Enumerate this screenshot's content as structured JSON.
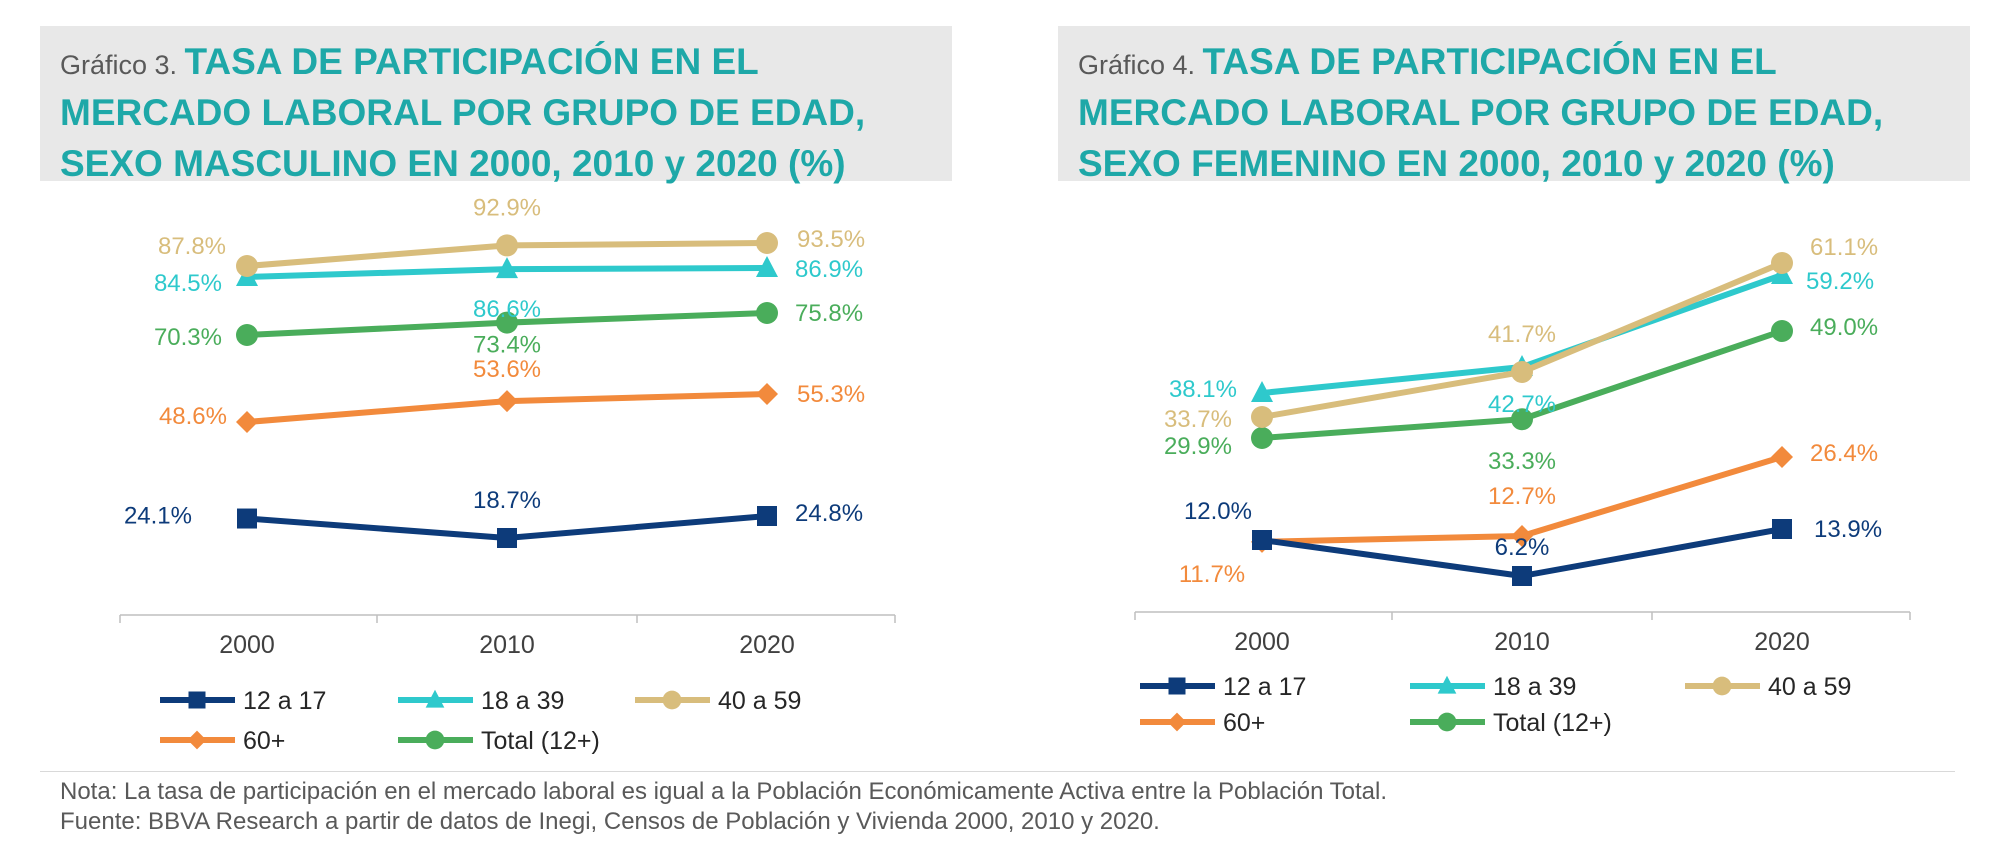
{
  "colors": {
    "title_bg": "#e8e8e8",
    "title_accent": "#1ea8a8",
    "text_gray": "#595959",
    "axis": "#bfbfbf"
  },
  "charts": [
    {
      "title_prefix": "Gráfico 3. ",
      "title_main": "TASA DE PARTICIPACIÓN EN EL MERCADO LABORAL POR GRUPO DE EDAD, SEXO MASCULINO EN 2000, 2010 y 2020 (%)"
    },
    {
      "title_prefix": "Gráfico 4. ",
      "title_main": "TASA DE PARTICIPACIÓN EN EL MERCADO LABORAL POR GRUPO DE EDAD, SEXO FEMENINO EN 2000, 2010 y 2020 (%)"
    }
  ],
  "chart_data": [
    {
      "type": "line",
      "title": "TASA DE PARTICIPACIÓN EN EL MERCADO LABORAL POR GRUPO DE EDAD, SEXO MASCULINO EN 2000, 2010 y 2020 (%)",
      "categories": [
        "2000",
        "2010",
        "2020"
      ],
      "ylim": [
        15,
        100
      ],
      "grid": false,
      "legend": "bottom",
      "series": [
        {
          "name": "12  a 17",
          "color": "#0d3b7a",
          "marker": "square",
          "values": [
            24.1,
            18.7,
            24.8
          ],
          "labels": [
            "24.1%",
            "18.7%",
            "24.8%"
          ]
        },
        {
          "name": "18 a 39",
          "color": "#2ec9cc",
          "marker": "triangle",
          "values": [
            84.5,
            86.6,
            86.9
          ],
          "labels": [
            "84.5%",
            "86.6%",
            "86.9%"
          ]
        },
        {
          "name": "40 a 59",
          "color": "#d8bd7c",
          "marker": "circle",
          "values": [
            87.8,
            92.9,
            93.5
          ],
          "labels": [
            "87.8%",
            "92.9%",
            "93.5%"
          ]
        },
        {
          "name": "60+",
          "color": "#f28a3c",
          "marker": "diamond",
          "values": [
            48.6,
            53.6,
            55.3
          ],
          "labels": [
            "48.6%",
            "53.6%",
            "55.3%"
          ]
        },
        {
          "name": "Total (12+)",
          "color": "#4aad5b",
          "marker": "circle",
          "values": [
            70.3,
            73.4,
            75.8
          ],
          "labels": [
            "70.3%",
            "73.4%",
            "75.8%"
          ]
        }
      ]
    },
    {
      "type": "line",
      "title": "TASA DE PARTICIPACIÓN EN EL MERCADO LABORAL POR GRUPO DE EDAD, SEXO FEMENINO EN 2000, 2010 y 2020 (%)",
      "categories": [
        "2000",
        "2010",
        "2020"
      ],
      "ylim": [
        0,
        70
      ],
      "grid": false,
      "legend": "bottom",
      "series": [
        {
          "name": "12  a 17",
          "color": "#0d3b7a",
          "marker": "square",
          "values": [
            12.0,
            6.2,
            13.9
          ],
          "labels": [
            "12.0%",
            "6.2%",
            "13.9%"
          ]
        },
        {
          "name": "18 a 39",
          "color": "#2ec9cc",
          "marker": "triangle",
          "values": [
            38.1,
            42.7,
            59.2
          ],
          "labels": [
            "38.1%",
            "42.7%",
            "59.2%"
          ]
        },
        {
          "name": "40 a 59",
          "color": "#d8bd7c",
          "marker": "circle",
          "values": [
            33.7,
            41.7,
            61.1
          ],
          "labels": [
            "33.7%",
            "41.7%",
            "61.1%"
          ]
        },
        {
          "name": "60+",
          "color": "#f28a3c",
          "marker": "diamond",
          "values": [
            11.7,
            12.7,
            26.4
          ],
          "labels": [
            "11.7%",
            "12.7%",
            "26.4%"
          ]
        },
        {
          "name": "Total (12+)",
          "color": "#4aad5b",
          "marker": "circle",
          "values": [
            29.9,
            33.3,
            49.0
          ],
          "labels": [
            "29.9%",
            "33.3%",
            "49.0%"
          ]
        }
      ]
    }
  ],
  "footer": {
    "note": "Nota: La tasa de participación en el mercado laboral es igual a la Población Económicamente Activa entre la Población Total.",
    "source": "Fuente: BBVA Research a partir de datos de Inegi, Censos de Población y Vivienda 2000, 2010 y 2020."
  }
}
